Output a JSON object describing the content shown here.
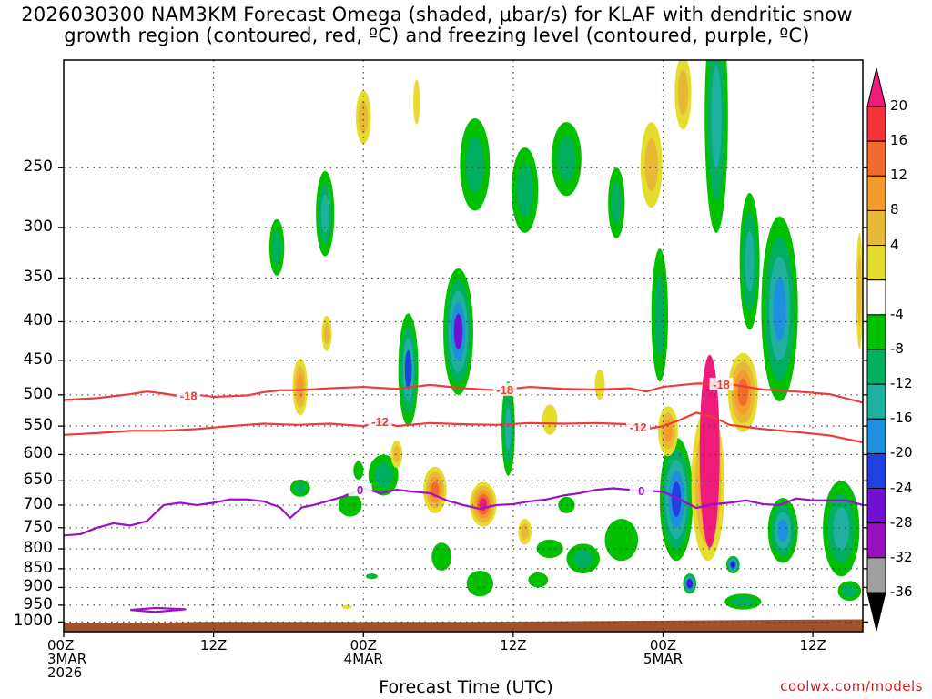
{
  "chart_data": {
    "type": "heatmap",
    "title_line1": "2026030300 NAM3KM Forecast Omega (shaded, μbar/s) for KLAF with dendritic snow",
    "title_line2": "growth region (contoured, red, ºC) and freezing level (contoured, purple, ºC)",
    "xlabel": "Forecast Time (UTC)",
    "credit": "coolwx.com/models",
    "x_range_hours": [
      0,
      48
    ],
    "x_ticks": [
      {
        "hour": 0,
        "label": "00Z",
        "sub1": "3MAR",
        "sub2": "2026"
      },
      {
        "hour": 9,
        "label": "12Z",
        "sub1": "",
        "sub2": ""
      },
      {
        "hour": 18,
        "label": "00Z",
        "sub1": "4MAR",
        "sub2": ""
      },
      {
        "hour": 27,
        "label": "12Z",
        "sub1": "",
        "sub2": ""
      },
      {
        "hour": 36,
        "label": "00Z",
        "sub1": "5MAR",
        "sub2": ""
      },
      {
        "hour": 45,
        "label": "12Z",
        "sub1": "",
        "sub2": ""
      }
    ],
    "y_axis": "pressure_hPa",
    "y_range_hPa": [
      1030,
      180
    ],
    "y_ticks": [
      250,
      300,
      350,
      400,
      450,
      500,
      550,
      600,
      650,
      700,
      750,
      800,
      850,
      900,
      950,
      1000
    ],
    "colorbar_labels": [
      "20",
      "16",
      "12",
      "8",
      "4",
      "-4",
      "-8",
      "-12",
      "-16",
      "-20",
      "-24",
      "-28",
      "-32",
      "-36"
    ],
    "colorbar_colors": [
      "#ee1b7a",
      "#f5323a",
      "#f26b2c",
      "#f39c2c",
      "#e8b836",
      "#e6dc2e",
      "#ffffff",
      "#00c000",
      "#00b060",
      "#20b0a0",
      "#1e90e0",
      "#2040e0",
      "#7010d0",
      "#9a10c0",
      "#a0a0a0",
      "#000000"
    ],
    "contours": [
      {
        "name": "-18",
        "color": "#ee3b3b",
        "labels": [
          {
            "hour": 7.5,
            "text": "-18"
          },
          {
            "hour": 26.5,
            "text": "-18"
          },
          {
            "hour": 39.5,
            "text": "-18"
          }
        ],
        "points": [
          [
            0,
            508
          ],
          [
            2,
            505
          ],
          [
            4,
            499
          ],
          [
            5,
            495
          ],
          [
            6,
            498
          ],
          [
            7,
            502
          ],
          [
            8,
            500
          ],
          [
            9,
            503
          ],
          [
            11,
            501
          ],
          [
            12,
            496
          ],
          [
            13,
            493
          ],
          [
            14,
            493
          ],
          [
            16,
            490
          ],
          [
            18,
            488
          ],
          [
            20,
            491
          ],
          [
            22,
            485
          ],
          [
            24,
            490
          ],
          [
            26,
            493
          ],
          [
            28,
            488
          ],
          [
            30,
            491
          ],
          [
            32,
            492
          ],
          [
            34,
            490
          ],
          [
            35,
            495
          ],
          [
            36,
            488
          ],
          [
            38,
            483
          ],
          [
            40,
            484
          ],
          [
            42,
            492
          ],
          [
            44,
            495
          ],
          [
            46,
            499
          ],
          [
            48,
            512
          ]
        ]
      },
      {
        "name": "-12",
        "color": "#ee3b3b",
        "labels": [
          {
            "hour": 19,
            "text": "-12"
          },
          {
            "hour": 34.5,
            "text": "-12"
          }
        ],
        "points": [
          [
            0,
            565
          ],
          [
            2,
            562
          ],
          [
            4,
            558
          ],
          [
            6,
            558
          ],
          [
            8,
            555
          ],
          [
            10,
            550
          ],
          [
            12,
            546
          ],
          [
            14,
            548
          ],
          [
            16,
            546
          ],
          [
            17,
            548
          ],
          [
            18,
            550
          ],
          [
            19,
            542
          ],
          [
            20,
            550
          ],
          [
            22,
            545
          ],
          [
            24,
            547
          ],
          [
            26,
            548
          ],
          [
            28,
            545
          ],
          [
            30,
            546
          ],
          [
            32,
            545
          ],
          [
            34,
            547
          ],
          [
            35,
            555
          ],
          [
            36,
            550
          ],
          [
            37,
            540
          ],
          [
            38,
            528
          ],
          [
            39,
            535
          ],
          [
            40,
            548
          ],
          [
            42,
            555
          ],
          [
            44,
            560
          ],
          [
            46,
            566
          ],
          [
            48,
            578
          ]
        ]
      },
      {
        "name": "0",
        "color": "#9b10c8",
        "labels": [
          {
            "hour": 17.8,
            "text": "0"
          },
          {
            "hour": 34.7,
            "text": "0"
          }
        ],
        "points": [
          [
            0,
            768
          ],
          [
            1,
            765
          ],
          [
            2,
            750
          ],
          [
            3,
            740
          ],
          [
            4,
            745
          ],
          [
            5,
            735
          ],
          [
            6,
            700
          ],
          [
            7,
            695
          ],
          [
            8,
            700
          ],
          [
            9,
            695
          ],
          [
            10,
            688
          ],
          [
            11,
            688
          ],
          [
            12,
            692
          ],
          [
            13,
            705
          ],
          [
            13.6,
            728
          ],
          [
            14.3,
            705
          ],
          [
            15,
            700
          ],
          [
            16,
            690
          ],
          [
            17,
            680
          ],
          [
            18,
            665
          ],
          [
            19,
            675
          ],
          [
            20,
            668
          ],
          [
            21,
            672
          ],
          [
            22,
            675
          ],
          [
            23,
            690
          ],
          [
            24,
            700
          ],
          [
            25,
            708
          ],
          [
            26,
            700
          ],
          [
            27,
            698
          ],
          [
            28,
            692
          ],
          [
            29,
            688
          ],
          [
            30,
            680
          ],
          [
            31,
            675
          ],
          [
            32,
            668
          ],
          [
            33,
            665
          ],
          [
            34,
            668
          ],
          [
            35,
            670
          ],
          [
            36,
            672
          ],
          [
            37,
            688
          ],
          [
            38,
            706
          ],
          [
            39,
            698
          ],
          [
            40,
            695
          ],
          [
            41,
            690
          ],
          [
            42,
            698
          ],
          [
            43,
            700
          ],
          [
            44,
            686
          ],
          [
            45,
            690
          ],
          [
            46,
            690
          ],
          [
            47,
            690
          ],
          [
            48,
            700
          ]
        ]
      },
      {
        "name": "0-loop",
        "color": "#9b10c8",
        "labels": [],
        "points": [
          [
            4.0,
            964
          ],
          [
            5.5,
            958
          ],
          [
            7.3,
            962
          ],
          [
            5.5,
            970
          ],
          [
            4.0,
            964
          ]
        ]
      }
    ],
    "omega_features": [
      {
        "hour": 18.0,
        "p": 215,
        "rh": 0.45,
        "rp": 35,
        "levels": [
          4,
          8
        ]
      },
      {
        "hour": 21.2,
        "p": 205,
        "rh": 0.2,
        "rp": 28,
        "levels": [
          4
        ]
      },
      {
        "hour": 12.8,
        "p": 320,
        "rh": 0.45,
        "rp": 55,
        "levels": [
          -4,
          -8
        ]
      },
      {
        "hour": 15.7,
        "p": 290,
        "rh": 0.55,
        "rp": 75,
        "levels": [
          -4,
          -8,
          -12
        ]
      },
      {
        "hour": 15.8,
        "p": 415,
        "rh": 0.3,
        "rp": 45,
        "levels": [
          4,
          8
        ]
      },
      {
        "hour": 14.2,
        "p": 490,
        "rh": 0.45,
        "rp": 85,
        "levels": [
          4,
          8,
          12
        ]
      },
      {
        "hour": 20.7,
        "p": 470,
        "rh": 0.6,
        "rp": 160,
        "levels": [
          -4,
          -8,
          -12,
          -20
        ]
      },
      {
        "hour": 23.7,
        "p": 420,
        "rh": 0.9,
        "rp": 160,
        "levels": [
          -4,
          -8,
          -12,
          -16,
          -28
        ]
      },
      {
        "hour": 24.7,
        "p": 250,
        "rh": 0.9,
        "rp": 70,
        "levels": [
          -4,
          -8
        ]
      },
      {
        "hour": 27.7,
        "p": 270,
        "rh": 0.8,
        "rp": 70,
        "levels": [
          -4,
          -8
        ]
      },
      {
        "hour": 30.2,
        "p": 245,
        "rh": 0.9,
        "rp": 55,
        "levels": [
          -4,
          -8
        ]
      },
      {
        "hour": 33.2,
        "p": 280,
        "rh": 0.5,
        "rp": 60,
        "levels": [
          -4,
          -8
        ]
      },
      {
        "hour": 26.7,
        "p": 560,
        "rh": 0.4,
        "rp": 160,
        "levels": [
          -4,
          -8,
          -12
        ]
      },
      {
        "hour": 19.2,
        "p": 640,
        "rh": 0.9,
        "rp": 80,
        "levels": [
          -4,
          -8
        ]
      },
      {
        "hour": 17.2,
        "p": 700,
        "rh": 0.7,
        "rp": 50,
        "levels": [
          -4
        ]
      },
      {
        "hour": 14.2,
        "p": 665,
        "rh": 0.6,
        "rp": 35,
        "levels": [
          -4,
          -8
        ]
      },
      {
        "hour": 18.5,
        "p": 870,
        "rh": 0.35,
        "rp": 15,
        "levels": [
          -4,
          -8
        ]
      },
      {
        "hour": 20.0,
        "p": 600,
        "rh": 0.35,
        "rp": 50,
        "levels": [
          4,
          8
        ]
      },
      {
        "hour": 22.3,
        "p": 670,
        "rh": 0.7,
        "rp": 95,
        "levels": [
          4,
          8,
          12,
          16
        ]
      },
      {
        "hour": 25.2,
        "p": 700,
        "rh": 0.8,
        "rp": 95,
        "levels": [
          4,
          8,
          12,
          16,
          20
        ]
      },
      {
        "hour": 22.7,
        "p": 820,
        "rh": 0.6,
        "rp": 70,
        "levels": [
          -4
        ]
      },
      {
        "hour": 25.0,
        "p": 890,
        "rh": 0.8,
        "rp": 70,
        "levels": [
          -4
        ]
      },
      {
        "hour": 27.7,
        "p": 760,
        "rh": 0.4,
        "rp": 60,
        "levels": [
          4,
          8
        ]
      },
      {
        "hour": 29.2,
        "p": 800,
        "rh": 0.8,
        "rp": 45,
        "levels": [
          -4
        ]
      },
      {
        "hour": 31.2,
        "p": 825,
        "rh": 1.0,
        "rp": 75,
        "levels": [
          -4,
          -8
        ]
      },
      {
        "hour": 30.2,
        "p": 700,
        "rh": 0.5,
        "rp": 35,
        "levels": [
          -4
        ]
      },
      {
        "hour": 29.2,
        "p": 540,
        "rh": 0.45,
        "rp": 50,
        "levels": [
          4
        ]
      },
      {
        "hour": 32.2,
        "p": 485,
        "rh": 0.3,
        "rp": 45,
        "levels": [
          4
        ]
      },
      {
        "hour": 35.3,
        "p": 250,
        "rh": 0.65,
        "rp": 65,
        "levels": [
          4,
          8
        ]
      },
      {
        "hour": 35.8,
        "p": 400,
        "rh": 0.5,
        "rp": 160,
        "levels": [
          -4,
          -8
        ]
      },
      {
        "hour": 39.2,
        "p": 200,
        "rh": 0.7,
        "rp": 210,
        "levels": [
          -4,
          -8,
          -12
        ]
      },
      {
        "hour": 41.2,
        "p": 340,
        "rh": 0.6,
        "rp": 140,
        "levels": [
          -4,
          -8,
          -12
        ]
      },
      {
        "hour": 43.0,
        "p": 400,
        "rh": 1.1,
        "rp": 220,
        "levels": [
          -4,
          -8,
          -12,
          -16
        ]
      },
      {
        "hour": 40.8,
        "p": 500,
        "rh": 0.9,
        "rp": 120,
        "levels": [
          4,
          8,
          12,
          16
        ]
      },
      {
        "hour": 37.2,
        "p": 200,
        "rh": 0.5,
        "rp": 45,
        "levels": [
          4,
          8
        ]
      },
      {
        "hour": 36.8,
        "p": 700,
        "rh": 1.0,
        "rp": 260,
        "levels": [
          -4,
          -8,
          -12,
          -16,
          -20
        ]
      },
      {
        "hour": 36.3,
        "p": 560,
        "rh": 0.6,
        "rp": 85,
        "levels": [
          4,
          8,
          12
        ]
      },
      {
        "hour": 38.7,
        "p": 675,
        "rh": 1.0,
        "rp": 310,
        "levels": [
          4,
          8,
          12,
          16
        ]
      },
      {
        "hour": 38.8,
        "p": 620,
        "rh": 0.6,
        "rp": 355,
        "levels": [
          20
        ]
      },
      {
        "hour": 37.6,
        "p": 890,
        "rh": 0.4,
        "rp": 55,
        "levels": [
          -4,
          -8,
          -12,
          -16,
          -20,
          -24,
          -28
        ]
      },
      {
        "hour": 40.2,
        "p": 840,
        "rh": 0.4,
        "rp": 45,
        "levels": [
          -4,
          -8,
          -12,
          -16,
          -20,
          -24
        ]
      },
      {
        "hour": 40.8,
        "p": 940,
        "rh": 1.1,
        "rp": 45,
        "levels": [
          -4,
          -8
        ]
      },
      {
        "hour": 43.2,
        "p": 760,
        "rh": 0.9,
        "rp": 150,
        "levels": [
          -4,
          -8,
          -12,
          -16
        ]
      },
      {
        "hour": 46.7,
        "p": 760,
        "rh": 1.1,
        "rp": 220,
        "levels": [
          -4,
          -8,
          -12
        ]
      },
      {
        "hour": 47.2,
        "p": 910,
        "rh": 0.7,
        "rp": 55,
        "levels": [
          -4,
          -8
        ]
      },
      {
        "hour": 33.5,
        "p": 780,
        "rh": 1.0,
        "rp": 100,
        "levels": [
          -4
        ]
      },
      {
        "hour": 28.5,
        "p": 880,
        "rh": 0.6,
        "rp": 40,
        "levels": [
          -4
        ]
      },
      {
        "hour": 47.8,
        "p": 370,
        "rh": 0.2,
        "rp": 130,
        "levels": [
          4,
          8
        ]
      },
      {
        "hour": 17.0,
        "p": 955,
        "rh": 0.3,
        "rp": 12,
        "levels": [
          4
        ]
      },
      {
        "hour": 17.7,
        "p": 630,
        "rh": 0.3,
        "rp": 35,
        "levels": [
          -4
        ]
      }
    ],
    "terrain": {
      "color": "#a0522d",
      "points": [
        [
          0,
          1003
        ],
        [
          5,
          1003
        ],
        [
          8,
          1000
        ],
        [
          24,
          1000
        ],
        [
          36,
          996
        ],
        [
          44,
          993
        ],
        [
          48,
          992
        ]
      ]
    }
  }
}
